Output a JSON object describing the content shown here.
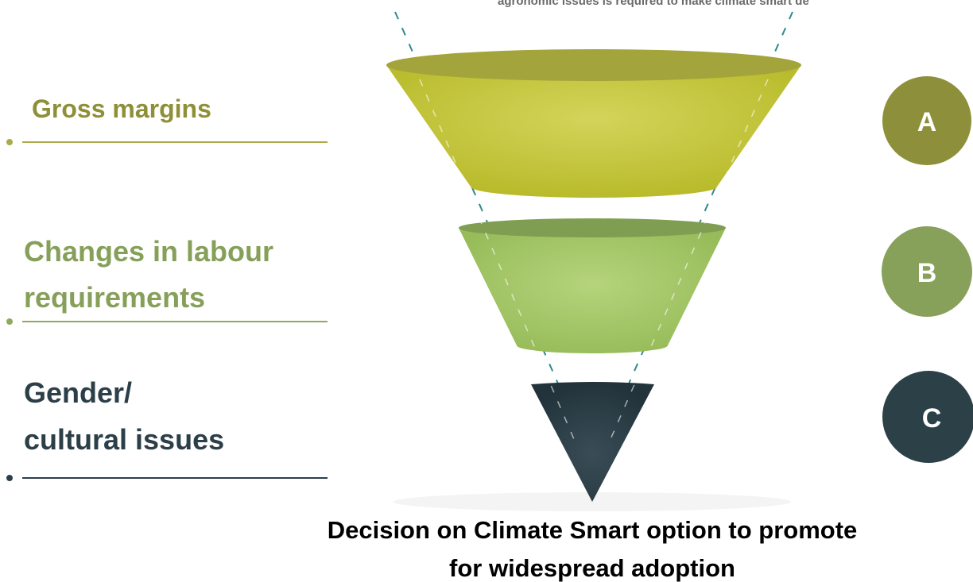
{
  "header": {
    "text": "agronomic issues is required to make climate smart de"
  },
  "stages": [
    {
      "label": [
        "Gross margins"
      ],
      "badge": "A"
    },
    {
      "label": [
        "Changes in labour",
        "requirements"
      ],
      "badge": "B"
    },
    {
      "label": [
        "Gender/",
        "cultural issues"
      ],
      "badge": "C"
    }
  ],
  "caption": [
    "Decision on Climate Smart option to promote",
    "for widespread adoption"
  ]
}
